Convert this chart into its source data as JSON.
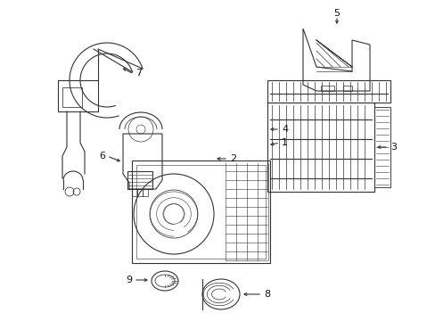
{
  "background": "#ffffff",
  "line_color": "#333333",
  "label_color": "#111111",
  "lw": 0.8,
  "figsize": [
    4.89,
    3.6
  ],
  "dpi": 100
}
